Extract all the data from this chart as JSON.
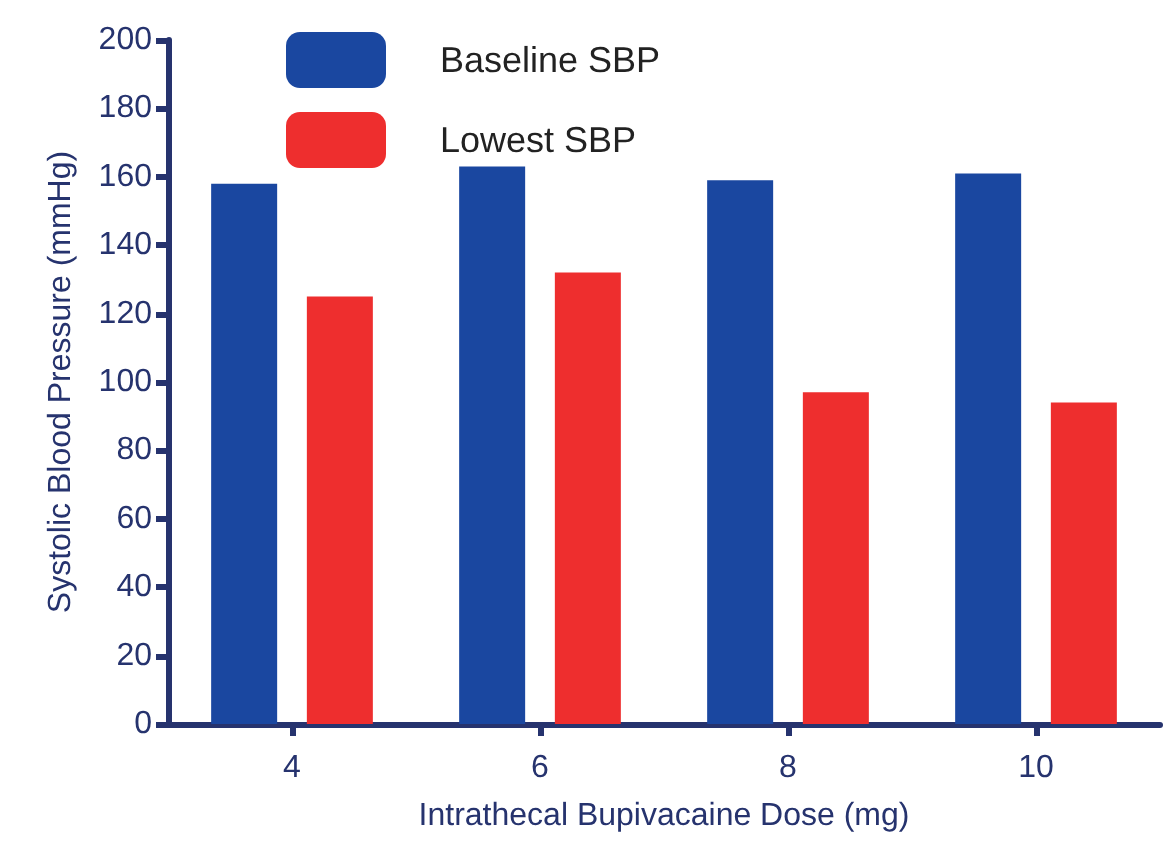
{
  "chart_data": {
    "type": "bar",
    "xlabel": "Intrathecal Bupivacaine Dose (mg)",
    "ylabel": "Systolic Blood Pressure (mmHg)",
    "categories": [
      "4",
      "6",
      "8",
      "10"
    ],
    "series": [
      {
        "name": "Baseline SBP",
        "color": "#1a47a0",
        "values": [
          158,
          163,
          159,
          161
        ]
      },
      {
        "name": "Lowest SBP",
        "color": "#ee2e2e",
        "values": [
          125,
          132,
          97,
          94
        ]
      }
    ],
    "ylim": [
      0,
      200
    ],
    "yticks": [
      0,
      20,
      40,
      60,
      80,
      100,
      120,
      140,
      160,
      180,
      200
    ],
    "grid": false,
    "legend": "top left"
  }
}
